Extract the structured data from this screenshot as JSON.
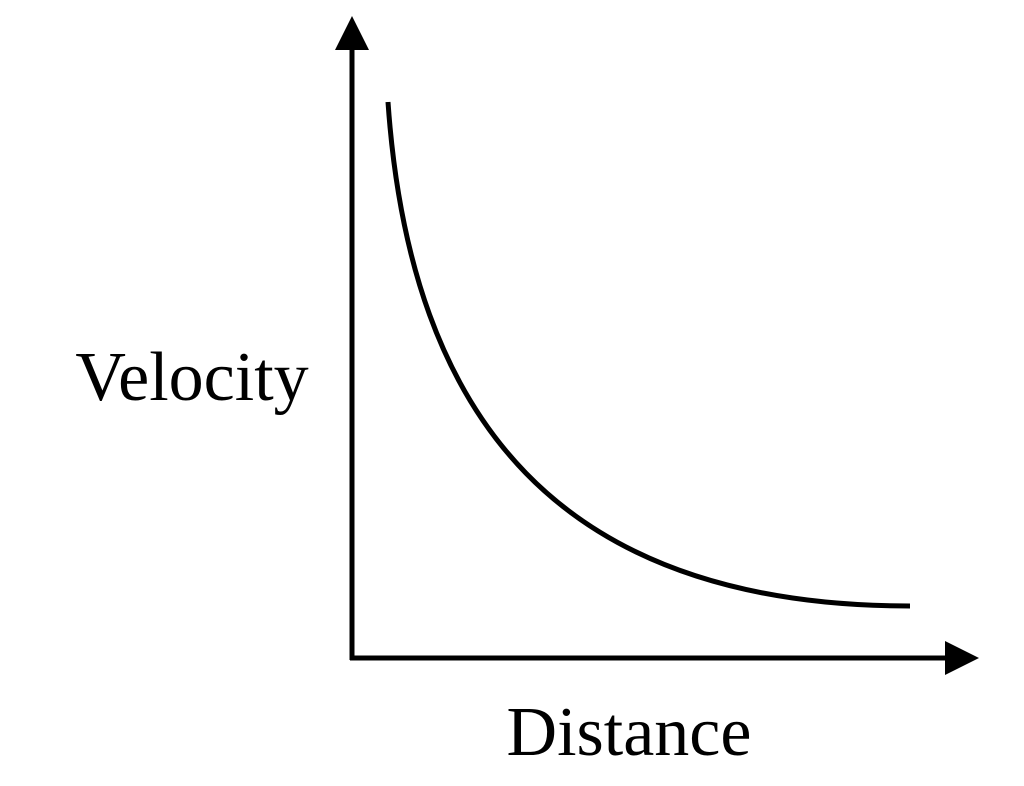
{
  "axes": {
    "y_label": "Velocity",
    "x_label": "Distance"
  }
}
